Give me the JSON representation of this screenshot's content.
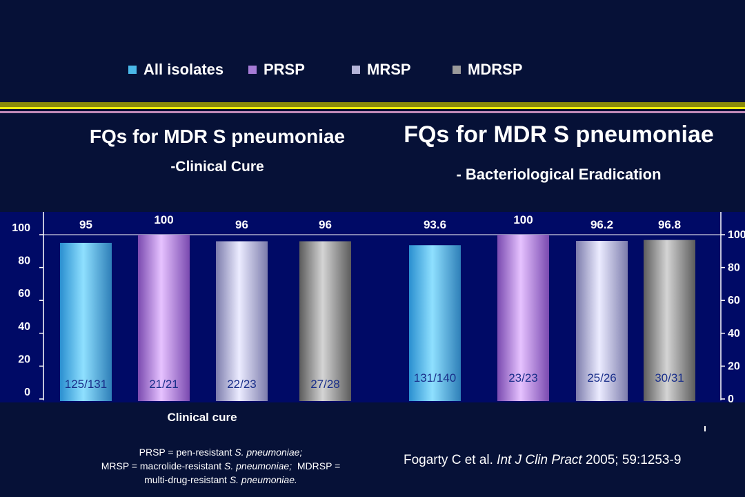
{
  "legend": [
    {
      "label": "All isolates",
      "color": "#4ab8e8"
    },
    {
      "label": "PRSP",
      "color": "#a57bd6"
    },
    {
      "label": "MRSP",
      "color": "#b4b4d8"
    },
    {
      "label": "MDRSP",
      "color": "#9a9a9a"
    }
  ],
  "left_title": "FQs for MDR S pneumoniae",
  "left_subtitle": "-Clinical Cure",
  "right_title": "FQs for MDR S pneumoniae",
  "right_subtitle": "- Bacteriological Eradication",
  "x_category_label": "Clinical cure",
  "footnote": {
    "line1_plain": "PRSP = pen-resistant ",
    "line1_italic": "S. pneumoniae;",
    "line2_plain": "MRSP = macrolide-resistant ",
    "line2_italic": "S. pneumoniae;",
    "line2_plain2": "  MDRSP =",
    "line3_plain": "multi-drug-resistant ",
    "line3_italic": "S. pneumoniae."
  },
  "citation": {
    "authors": "Fogarty C et al. ",
    "journal": "Int J Clin Pract",
    "details": " 2005; 59:1253-9"
  },
  "chart_data": {
    "type": "bar",
    "ylim": [
      0,
      100
    ],
    "y_ticks": [
      0,
      20,
      40,
      60,
      80,
      100
    ],
    "series_names": [
      "All isolates",
      "PRSP",
      "MRSP",
      "MDRSP"
    ],
    "colors": [
      "#4ab8e8",
      "#a57bd6",
      "#b4b4d8",
      "#9a9a9a"
    ],
    "groups": [
      {
        "bars": [
          {
            "value": 95,
            "label": "95",
            "ratio": "125/131"
          },
          {
            "value": 100,
            "label": "100",
            "ratio": "21/21"
          },
          {
            "value": 96,
            "label": "96",
            "ratio": "22/23"
          },
          {
            "value": 96,
            "label": "96",
            "ratio": "27/28"
          }
        ]
      },
      {
        "bars": [
          {
            "value": 93.6,
            "label": "93.6",
            "ratio": "131/140"
          },
          {
            "value": 100,
            "label": "100",
            "ratio": "23/23"
          },
          {
            "value": 96.2,
            "label": "96.2",
            "ratio": "25/26"
          },
          {
            "value": 96.8,
            "label": "96.8",
            "ratio": "30/31"
          }
        ]
      }
    ]
  }
}
